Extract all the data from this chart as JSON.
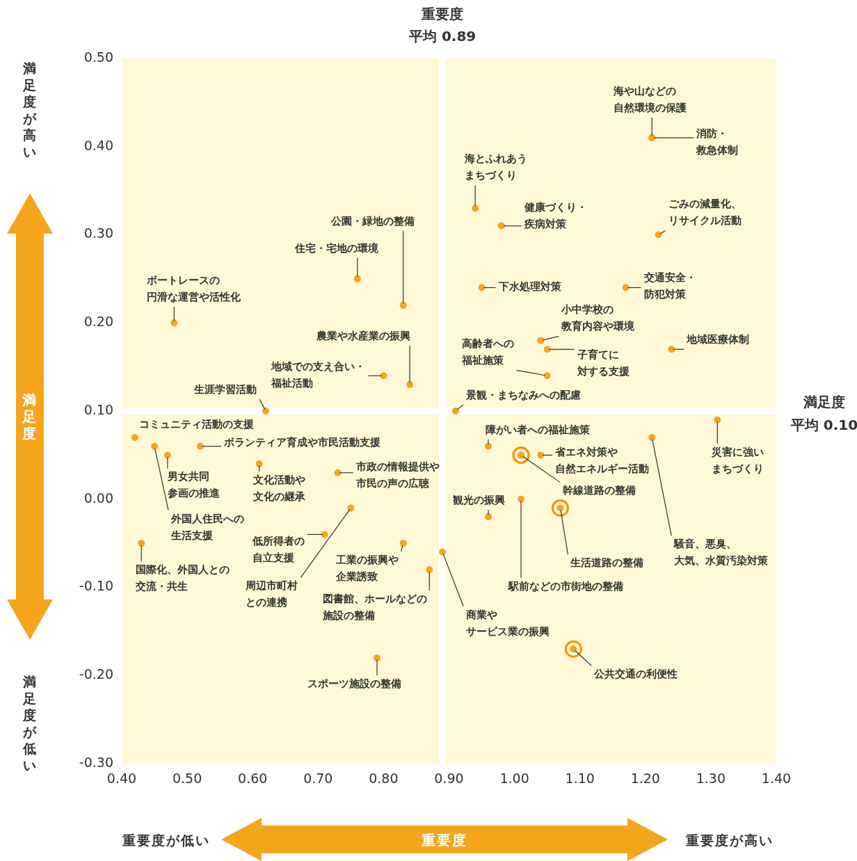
{
  "chart_data": {
    "type": "scatter",
    "xlabel": "重要度",
    "ylabel": "満足度",
    "xlim": [
      0.4,
      1.4
    ],
    "ylim": [
      -0.3,
      0.5
    ],
    "xticks": [
      {
        "value": 0.4,
        "label": "0.40"
      },
      {
        "value": 0.5,
        "label": "0.50"
      },
      {
        "value": 0.6,
        "label": "0.60"
      },
      {
        "value": 0.7,
        "label": "0.70"
      },
      {
        "value": 0.8,
        "label": "0.80"
      },
      {
        "value": 0.9,
        "label": "0.90"
      },
      {
        "value": 1.0,
        "label": "1.00"
      },
      {
        "value": 1.1,
        "label": "1.10"
      },
      {
        "value": 1.2,
        "label": "1.20"
      },
      {
        "value": 1.3,
        "label": "1.30"
      },
      {
        "value": 1.4,
        "label": "1.40"
      }
    ],
    "yticks": [
      {
        "value": -0.3,
        "label": "-0.30"
      },
      {
        "value": -0.2,
        "label": "-0.20"
      },
      {
        "value": -0.1,
        "label": "-0.10"
      },
      {
        "value": 0,
        "label": "0.00"
      },
      {
        "value": 0.1,
        "label": "0.10"
      },
      {
        "value": 0.2,
        "label": "0.20"
      },
      {
        "value": 0.3,
        "label": "0.30"
      },
      {
        "value": 0.4,
        "label": "0.40"
      },
      {
        "value": 0.5,
        "label": "0.50"
      }
    ],
    "grid": false,
    "legend": false,
    "marker": "circle",
    "series": [
      {
        "color": "#f5a51c",
        "x": [
          1.21,
          1.21,
          0.94,
          0.98,
          1.22,
          0.95,
          1.17,
          1.04,
          1.05,
          1.24,
          1.05,
          0.91,
          0.83,
          0.76,
          0.48,
          0.84,
          0.8,
          0.62,
          0.42,
          0.52,
          0.47,
          0.45,
          0.61,
          0.73,
          0.75,
          0.71,
          0.43,
          0.83,
          0.87,
          0.89,
          0.79,
          0.96,
          1.04,
          1.01,
          0.96,
          1.01,
          1.07,
          1.09,
          1.21,
          1.31
        ],
        "values": [
          0.41,
          0.41,
          0.33,
          0.31,
          0.3,
          0.24,
          0.24,
          0.18,
          0.17,
          0.17,
          0.14,
          0.1,
          0.22,
          0.25,
          0.2,
          0.13,
          0.14,
          0.1,
          0.07,
          0.06,
          0.05,
          0.06,
          0.04,
          0.03,
          -0.01,
          -0.04,
          -0.05,
          -0.05,
          -0.08,
          -0.06,
          -0.18,
          0.06,
          0.05,
          0.05,
          -0.02,
          0.0,
          -0.01,
          -0.17,
          0.07,
          0.09
        ]
      },
      {
        "color": "#f39200",
        "x": [
          1.01,
          1.07,
          1.09
        ],
        "values": [
          0.05,
          -0.01,
          -0.17
        ]
      }
    ],
    "ref_lines": [
      {
        "axis": "x",
        "value": 0.89,
        "label": "重要度平均 0.89",
        "color": "#ffffff"
      },
      {
        "axis": "y",
        "value": 0.1,
        "label": "満足度平均 0.10",
        "color": "#ffffff"
      }
    ],
    "annotations": [
      {
        "text": "海や山などの自然環境の保護",
        "x": 1.21,
        "y": 0.41
      },
      {
        "text": "消防・救急体制",
        "x": 1.21,
        "y": 0.41
      },
      {
        "text": "海とふれあうまちづくり",
        "x": 0.94,
        "y": 0.33
      },
      {
        "text": "健康づくり・疾病対策",
        "x": 0.98,
        "y": 0.31
      },
      {
        "text": "ごみの減量化、リサイクル活動",
        "x": 1.22,
        "y": 0.3
      },
      {
        "text": "下水処理対策",
        "x": 0.95,
        "y": 0.24
      },
      {
        "text": "交通安全・防犯対策",
        "x": 1.17,
        "y": 0.24
      },
      {
        "text": "小中学校の教育内容や環境",
        "x": 1.04,
        "y": 0.18
      },
      {
        "text": "子育てに対する支援",
        "x": 1.05,
        "y": 0.17
      },
      {
        "text": "地域医療体制",
        "x": 1.24,
        "y": 0.17
      },
      {
        "text": "高齢者への福祉施策",
        "x": 1.05,
        "y": 0.14
      },
      {
        "text": "景観・まちなみへの配慮",
        "x": 0.91,
        "y": 0.1
      },
      {
        "text": "公園・緑地の整備",
        "x": 0.83,
        "y": 0.22
      },
      {
        "text": "住宅・宅地の環境",
        "x": 0.76,
        "y": 0.25
      },
      {
        "text": "ボートレースの円滑な運営や活性化",
        "x": 0.48,
        "y": 0.2
      },
      {
        "text": "農業や水産業の振興",
        "x": 0.84,
        "y": 0.13
      },
      {
        "text": "地域での支え合い・福祉活動",
        "x": 0.8,
        "y": 0.14
      },
      {
        "text": "生涯学習活動",
        "x": 0.62,
        "y": 0.1
      },
      {
        "text": "コミュニティ活動の支援",
        "x": 0.42,
        "y": 0.07
      },
      {
        "text": "ボランティア育成や市民活動支援",
        "x": 0.52,
        "y": 0.06
      },
      {
        "text": "男女共同参画の推進",
        "x": 0.47,
        "y": 0.05
      },
      {
        "text": "外国人住民への生活支援",
        "x": 0.45,
        "y": 0.06
      },
      {
        "text": "文化活動や文化の継承",
        "x": 0.61,
        "y": 0.04
      },
      {
        "text": "市政の情報提供や市民の声の広聴",
        "x": 0.73,
        "y": 0.03
      },
      {
        "text": "周辺市町村との連携",
        "x": 0.75,
        "y": -0.01
      },
      {
        "text": "低所得者の自立支援",
        "x": 0.71,
        "y": -0.04
      },
      {
        "text": "国際化、外国人との交流・共生",
        "x": 0.43,
        "y": -0.05
      },
      {
        "text": "工業の振興や企業誘致",
        "x": 0.83,
        "y": -0.05
      },
      {
        "text": "図書館、ホールなどの施設の整備",
        "x": 0.87,
        "y": -0.08
      },
      {
        "text": "商業やサービス業の振興",
        "x": 0.89,
        "y": -0.06
      },
      {
        "text": "スポーツ施設の整備",
        "x": 0.79,
        "y": -0.18
      },
      {
        "text": "障がい者への福祉施策",
        "x": 0.96,
        "y": 0.06
      },
      {
        "text": "省エネ対策や自然エネルギー活動",
        "x": 1.04,
        "y": 0.05
      },
      {
        "text": "幹線道路の整備",
        "x": 1.01,
        "y": 0.05
      },
      {
        "text": "観光の振興",
        "x": 0.96,
        "y": -0.02
      },
      {
        "text": "駅前などの市街地の整備",
        "x": 1.01,
        "y": 0.0
      },
      {
        "text": "生活道路の整備",
        "x": 1.07,
        "y": -0.01
      },
      {
        "text": "公共交通の利便性",
        "x": 1.09,
        "y": -0.17
      },
      {
        "text": "騒音、悪臭、大気、水質汚染対策",
        "x": 1.21,
        "y": 0.07
      },
      {
        "text": "災害に強いまちづくり",
        "x": 1.31,
        "y": 0.09
      },
      "満足度が高い",
      "満足度が低い",
      "重要度が低い",
      "重要度が高い"
    ]
  }
}
